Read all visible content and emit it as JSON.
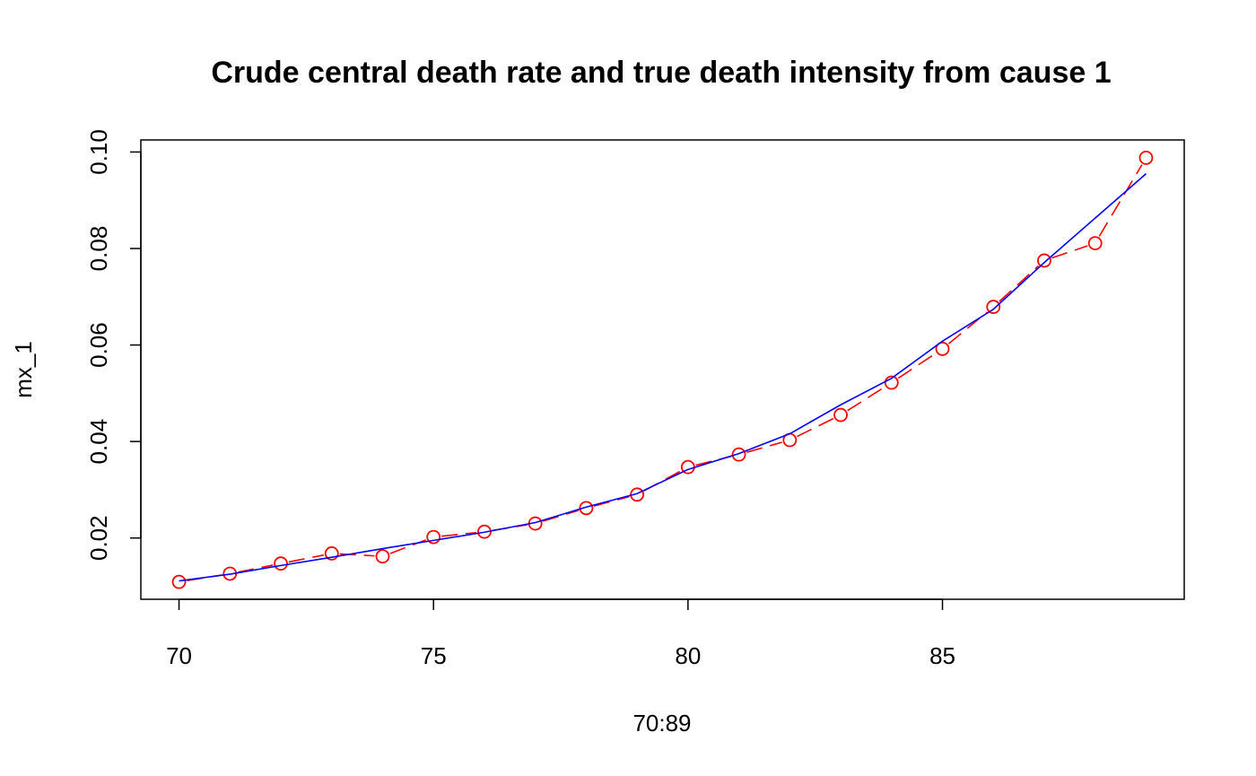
{
  "chart_data": {
    "type": "line",
    "title": "Crude central death rate and true death intensity from cause 1",
    "xlabel": "70:89",
    "ylabel": "mx_1",
    "xlim": [
      69.25,
      89.75
    ],
    "ylim": [
      0.0073,
      0.1025
    ],
    "x_ticks": [
      70,
      75,
      80,
      85
    ],
    "y_ticks": [
      0.02,
      0.04,
      0.06,
      0.08,
      0.1
    ],
    "x_tick_labels": [
      "70",
      "75",
      "80",
      "85"
    ],
    "y_tick_labels": [
      "0.02",
      "0.04",
      "0.06",
      "0.08",
      "0.10"
    ],
    "grid": false,
    "legend": "none",
    "x": [
      70,
      71,
      72,
      73,
      74,
      75,
      76,
      77,
      78,
      79,
      80,
      81,
      82,
      83,
      84,
      85,
      86,
      87,
      88,
      89
    ],
    "series": [
      {
        "style": "points-dashed",
        "color": "#ff0000",
        "values": [
          0.0109,
          0.0126,
          0.0147,
          0.0168,
          0.0162,
          0.0202,
          0.0213,
          0.023,
          0.0262,
          0.029,
          0.0347,
          0.0373,
          0.0403,
          0.0455,
          0.0522,
          0.0592,
          0.0679,
          0.0775,
          0.0811,
          0.0988
        ]
      },
      {
        "style": "solid-line",
        "color": "#0000ff",
        "values": [
          0.0111,
          0.0125,
          0.0143,
          0.016,
          0.0178,
          0.0195,
          0.0212,
          0.0232,
          0.0264,
          0.0292,
          0.0342,
          0.0375,
          0.0416,
          0.0476,
          0.0531,
          0.0608,
          0.0674,
          0.0771,
          0.0863,
          0.0955
        ]
      }
    ]
  }
}
